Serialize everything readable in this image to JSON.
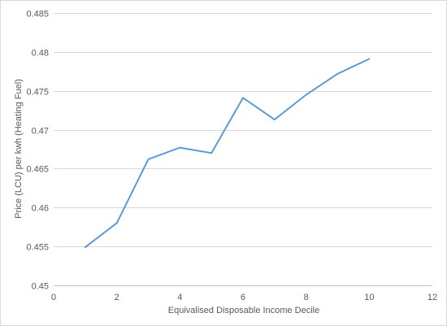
{
  "chart_data": {
    "type": "line",
    "title": "",
    "xlabel": "Equivalised Disposable Income Decile",
    "ylabel": "Price (LCU) per kwh (Heating Fuel)",
    "xlim": [
      0,
      12
    ],
    "ylim": [
      0.45,
      0.485
    ],
    "xticks": [
      0,
      2,
      4,
      6,
      8,
      10,
      12
    ],
    "yticks": [
      0.45,
      0.455,
      0.46,
      0.465,
      0.47,
      0.475,
      0.48,
      0.485
    ],
    "xtick_labels": [
      "0",
      "2",
      "4",
      "6",
      "8",
      "10",
      "12"
    ],
    "ytick_labels": [
      "0.45",
      "0.455",
      "0.46",
      "0.465",
      "0.47",
      "0.475",
      "0.48",
      "0.485"
    ],
    "grid": true,
    "legend": "none",
    "series_color": "#5b9bd5",
    "x": [
      1,
      2,
      3,
      4,
      5,
      6,
      7,
      8,
      9,
      10
    ],
    "y": [
      0.4549,
      0.458,
      0.4662,
      0.4677,
      0.467,
      0.4741,
      0.4713,
      0.4745,
      0.4772,
      0.4791
    ]
  }
}
